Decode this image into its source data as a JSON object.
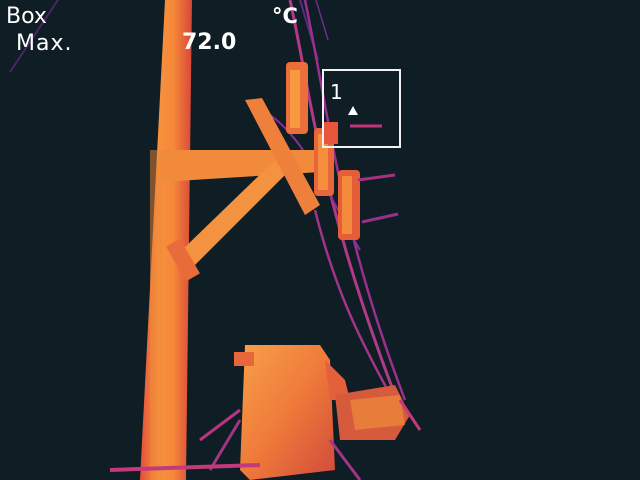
{
  "measurement": {
    "tool_label": "Box",
    "stat_label": "Max.",
    "stat_value": "72.0",
    "unit": "°C",
    "roi_number": "1"
  },
  "palette": {
    "background": "#0f1d24",
    "hot": "#f7913c",
    "warm": "#e8583a",
    "mid": "#c12f6c",
    "cool": "#8a2c9a",
    "cold": "#3a1d5a"
  },
  "icons": {
    "hotspot": "max-temperature-triangle-icon"
  }
}
